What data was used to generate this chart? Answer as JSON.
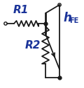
{
  "bg_color": "#ffffff",
  "dark_blue": "#1a3399",
  "line_color": "#1a1a1a",
  "r1_label": "R1",
  "r2_label": "R2",
  "hfe_h": "h",
  "hfe_sub": "FE",
  "label_fontsize": 11
}
